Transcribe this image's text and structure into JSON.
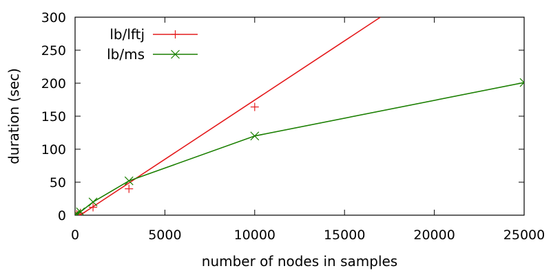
{
  "chart_data": {
    "type": "line",
    "xlabel": "number of nodes in samples",
    "ylabel": "duration (sec)",
    "xlim": [
      0,
      25000
    ],
    "ylim": [
      0,
      300
    ],
    "xticks": [
      0,
      5000,
      10000,
      15000,
      20000,
      25000
    ],
    "yticks": [
      0,
      50,
      100,
      150,
      200,
      250,
      300
    ],
    "grid": false,
    "legend_position": "top-left",
    "series": [
      {
        "name": "lb/lftj",
        "color": "#e41a1c",
        "marker": "plus",
        "x": [
          10,
          100,
          300,
          1000,
          3000,
          10000
        ],
        "y": [
          0.2,
          1.5,
          3.5,
          12,
          40,
          164
        ],
        "fit_line": {
          "x": [
            0,
            17000
          ],
          "y": [
            -5,
            300
          ]
        }
      },
      {
        "name": "lb/ms",
        "color": "#1a7f00",
        "marker": "cross",
        "x": [
          10,
          100,
          300,
          1000,
          3000,
          10000,
          25000
        ],
        "y": [
          1,
          2,
          5,
          20,
          52,
          120,
          201
        ]
      }
    ]
  }
}
